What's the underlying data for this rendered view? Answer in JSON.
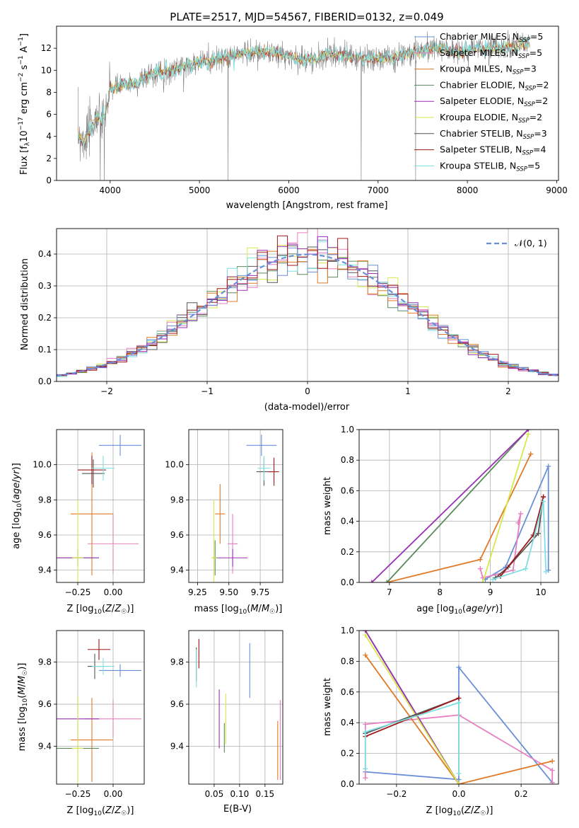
{
  "figure": {
    "title": "PLATE=2517, MJD=54567, FIBERID=0132, z=0.049"
  },
  "models": [
    {
      "key": "chab_miles",
      "name": "Chabrier MILES",
      "nssp": "5",
      "color": "#6a8fd8"
    },
    {
      "key": "salp_miles",
      "name": "Salpeter MILES",
      "nssp": "5",
      "color": "#e77fc0"
    },
    {
      "key": "krou_miles",
      "name": "Kroupa MILES",
      "nssp": "3",
      "color": "#e07a28"
    },
    {
      "key": "chab_elodie",
      "name": "Chabrier ELODIE",
      "nssp": "2",
      "color": "#5b8a5b"
    },
    {
      "key": "salp_elodie",
      "name": "Salpeter ELODIE",
      "nssp": "2",
      "color": "#9b2fb5"
    },
    {
      "key": "krou_elodie",
      "name": "Kroupa ELODIE",
      "nssp": "2",
      "color": "#d7e84a"
    },
    {
      "key": "chab_stelib",
      "name": "Chabrier STELIB",
      "nssp": "3",
      "color": "#555555"
    },
    {
      "key": "salp_stelib",
      "name": "Salpeter STELIB",
      "nssp": "4",
      "color": "#a01818"
    },
    {
      "key": "krou_stelib",
      "name": "Kroupa STELIB",
      "nssp": "5",
      "color": "#7fdfe0"
    }
  ],
  "chart_data": [
    {
      "id": "spectrum",
      "type": "line",
      "xlabel": "wavelength [Angstrom, rest frame]",
      "ylabel": "Flux [f_λ 10^-17 erg cm^-2 s^-1 A^-1]",
      "xlim": [
        3400,
        9020
      ],
      "ylim": [
        0,
        14
      ],
      "xticks": [
        "4000",
        "5000",
        "6000",
        "7000",
        "8000",
        "9000"
      ],
      "yticks": [
        "0",
        "2",
        "4",
        "6",
        "8",
        "10",
        "12"
      ],
      "legend": "top-right",
      "data_color": "#808080",
      "model_color": "#7fdfe0",
      "continuum": {
        "x": [
          3640,
          3700,
          3800,
          3850,
          3900,
          3950,
          4000,
          4100,
          4200,
          4300,
          4400,
          4500,
          4700,
          4900,
          5100,
          5300,
          5500,
          5700,
          5900,
          6100,
          6300,
          6500,
          6700,
          6900,
          7100,
          7300,
          7500,
          7700,
          7900,
          8100,
          8300,
          8500,
          8700
        ],
        "y": [
          4.2,
          3.6,
          4.8,
          6.0,
          5.2,
          6.3,
          8.3,
          8.5,
          8.8,
          8.8,
          9.5,
          9.8,
          10.0,
          10.6,
          10.8,
          11.2,
          11.6,
          11.7,
          11.5,
          11.0,
          11.0,
          11.6,
          11.2,
          11.0,
          11.1,
          11.4,
          11.9,
          12.0,
          11.6,
          11.9,
          12.0,
          12.2,
          12.4
        ]
      },
      "absorption": [
        {
          "x": 3890,
          "y": 0
        },
        {
          "x": 3935,
          "y": 0
        },
        {
          "x": 5320,
          "y": 0
        },
        {
          "x": 6810,
          "y": 0
        },
        {
          "x": 7420,
          "y": 0
        }
      ]
    },
    {
      "id": "residuals",
      "type": "line",
      "xlabel": "(data-model)/error",
      "ylabel": "Normed distribution",
      "xlim": [
        -2.5,
        2.5
      ],
      "ylim": [
        0,
        0.48
      ],
      "xticks": [
        "−2",
        "−1",
        "0",
        "1",
        "2"
      ],
      "yticks": [
        "0.0",
        "0.1",
        "0.2",
        "0.3",
        "0.4"
      ],
      "legend": "top-right",
      "legend_label": "𝒩(0, 1)",
      "normal_color": "#6a8fd8",
      "hist_bin_width": 0.1
    },
    {
      "id": "age_vs_Z",
      "type": "scatter",
      "xlabel": "Z [log10(Z/Z☉)]",
      "ylabel": "age  [log10(age/yr)]",
      "xlim": [
        -0.4,
        0.22
      ],
      "ylim": [
        9.33,
        10.2
      ],
      "xticks": [
        "−0.25",
        "0.00"
      ],
      "yticks": [
        "9.4",
        "9.6",
        "9.8",
        "10.0"
      ],
      "points": [
        {
          "m": 0,
          "x": 0.05,
          "y": 10.11,
          "ex": 0.15,
          "ey": 0.06
        },
        {
          "m": 1,
          "x": 0.0,
          "y": 9.55,
          "ex": 0.18,
          "ey": 0.17
        },
        {
          "m": 2,
          "x": -0.15,
          "y": 9.72,
          "ex": 0.15,
          "ey": 0.35
        },
        {
          "m": 3,
          "x": -0.25,
          "y": 9.47,
          "ex": 0.15,
          "ey": 0.05
        },
        {
          "m": 4,
          "x": -0.25,
          "y": 9.47,
          "ex": 0.15,
          "ey": 0.05
        },
        {
          "m": 5,
          "x": -0.25,
          "y": 9.47,
          "ex": 0.04,
          "ey": 0.33
        },
        {
          "m": 6,
          "x": -0.14,
          "y": 9.95,
          "ex": 0.08,
          "ey": 0.08
        },
        {
          "m": 7,
          "x": -0.15,
          "y": 9.97,
          "ex": 0.1,
          "ey": 0.08
        },
        {
          "m": 8,
          "x": -0.07,
          "y": 9.98,
          "ex": 0.08,
          "ey": 0.07
        }
      ]
    },
    {
      "id": "age_vs_mass",
      "type": "scatter",
      "xlabel": "mass [log10(M/M☉)]",
      "ylabel": "",
      "xlim": [
        9.18,
        9.93
      ],
      "ylim": [
        9.33,
        10.2
      ],
      "xticks": [
        "9.25",
        "9.50",
        "9.75"
      ],
      "yticks": [
        "9.4",
        "9.6",
        "9.8",
        "10.0"
      ],
      "points": [
        {
          "m": 0,
          "x": 9.76,
          "y": 10.11,
          "ex": 0.12,
          "ey": 0.06
        },
        {
          "m": 1,
          "x": 9.53,
          "y": 9.55,
          "ex": 0.04,
          "ey": 0.17
        },
        {
          "m": 2,
          "x": 9.43,
          "y": 9.72,
          "ex": 0.04,
          "ey": 0.17
        },
        {
          "m": 3,
          "x": 9.39,
          "y": 9.47,
          "ex": 0.02,
          "ey": 0.1
        },
        {
          "m": 4,
          "x": 9.53,
          "y": 9.47,
          "ex": 0.12,
          "ey": 0.05
        },
        {
          "m": 5,
          "x": 9.38,
          "y": 9.47,
          "ex": 0.02,
          "ey": 0.33
        },
        {
          "m": 6,
          "x": 9.78,
          "y": 9.96,
          "ex": 0.06,
          "ey": 0.08
        },
        {
          "m": 7,
          "x": 9.86,
          "y": 9.96,
          "ex": 0.04,
          "ey": 0.08
        },
        {
          "m": 8,
          "x": 9.78,
          "y": 9.98,
          "ex": 0.05,
          "ey": 0.07
        }
      ]
    },
    {
      "id": "weight_vs_age",
      "type": "line",
      "xlabel": "age  [log10(age/yr)]",
      "ylabel": "mass weight",
      "xlim": [
        6.4,
        10.35
      ],
      "ylim": [
        0,
        1
      ],
      "xticks": [
        "7",
        "8",
        "9",
        "10"
      ],
      "yticks": [
        "0.0",
        "0.2",
        "0.4",
        "0.6",
        "0.8",
        "1.0"
      ],
      "series": [
        {
          "m": 0,
          "x": [
            8.9,
            9.3,
            10.15,
            10.15
          ],
          "y": [
            0.02,
            0.1,
            0.76,
            0.08
          ]
        },
        {
          "m": 1,
          "x": [
            8.8,
            8.85,
            9.45,
            9.6,
            9.55
          ],
          "y": [
            0.09,
            0.03,
            0.08,
            0.45,
            0.39
          ]
        },
        {
          "m": 2,
          "x": [
            6.95,
            8.8,
            9.8
          ],
          "y": [
            0.0,
            0.15,
            0.84
          ]
        },
        {
          "m": 3,
          "x": [
            6.95,
            9.75
          ],
          "y": [
            0.0,
            1.0
          ]
        },
        {
          "m": 4,
          "x": [
            6.65,
            9.75
          ],
          "y": [
            0.0,
            1.0
          ]
        },
        {
          "m": 5,
          "x": [
            8.85,
            9.75
          ],
          "y": [
            0.0,
            0.97
          ]
        },
        {
          "m": 6,
          "x": [
            9.1,
            9.35,
            9.95,
            10.05
          ],
          "y": [
            0.03,
            0.1,
            0.32,
            0.56
          ]
        },
        {
          "m": 7,
          "x": [
            9.2,
            9.85,
            10.05
          ],
          "y": [
            0.04,
            0.31,
            0.56
          ]
        },
        {
          "m": 8,
          "x": [
            9.05,
            9.7,
            10.05,
            10.1
          ],
          "y": [
            0.02,
            0.09,
            0.53,
            0.07
          ]
        }
      ]
    },
    {
      "id": "mass_vs_Z",
      "type": "scatter",
      "xlabel": "Z [log10(Z/Z☉)]",
      "ylabel": "mass [log10(M/M☉)]",
      "xlim": [
        -0.4,
        0.22
      ],
      "ylim": [
        9.22,
        9.95
      ],
      "xticks": [
        "−0.25",
        "0.00"
      ],
      "yticks": [
        "9.4",
        "9.6",
        "9.8"
      ],
      "points": [
        {
          "m": 0,
          "x": 0.05,
          "y": 9.76,
          "ex": 0.15,
          "ey": 0.03
        },
        {
          "m": 1,
          "x": 0.0,
          "y": 9.53,
          "ex": 0.2,
          "ey": 0.09
        },
        {
          "m": 2,
          "x": -0.15,
          "y": 9.43,
          "ex": 0.15,
          "ey": 0.2
        },
        {
          "m": 3,
          "x": -0.25,
          "y": 9.39,
          "ex": 0.15,
          "ey": 0.02
        },
        {
          "m": 4,
          "x": -0.25,
          "y": 9.53,
          "ex": 0.15,
          "ey": 0.11
        },
        {
          "m": 5,
          "x": -0.25,
          "y": 9.39,
          "ex": 0.04,
          "ey": 0.25
        },
        {
          "m": 6,
          "x": -0.13,
          "y": 9.78,
          "ex": 0.05,
          "ey": 0.06
        },
        {
          "m": 7,
          "x": -0.1,
          "y": 9.86,
          "ex": 0.08,
          "ey": 0.05
        },
        {
          "m": 8,
          "x": -0.07,
          "y": 9.78,
          "ex": 0.08,
          "ey": 0.04
        }
      ]
    },
    {
      "id": "mass_vs_ebv",
      "type": "scatter",
      "xlabel": "E(B-V)",
      "ylabel": "",
      "xlim": [
        0,
        0.185
      ],
      "ylim": [
        9.22,
        9.95
      ],
      "xticks": [
        "0.05",
        "0.10",
        "0.15"
      ],
      "yticks": [
        "9.4",
        "9.6",
        "9.8"
      ],
      "points": [
        {
          "m": 0,
          "x": 0.12,
          "y": 9.76,
          "ey": 0.13
        },
        {
          "m": 1,
          "x": 0.18,
          "y": 9.43,
          "ey": 0.19
        },
        {
          "m": 2,
          "x": 0.175,
          "y": 9.38,
          "ey": 0.14
        },
        {
          "m": 3,
          "x": 0.07,
          "y": 9.44,
          "ey": 0.07
        },
        {
          "m": 4,
          "x": 0.06,
          "y": 9.53,
          "ey": 0.14
        },
        {
          "m": 5,
          "x": 0.073,
          "y": 9.53,
          "ey": 0.12
        },
        {
          "m": 6,
          "x": 0.015,
          "y": 9.79,
          "ey": 0.08
        },
        {
          "m": 7,
          "x": 0.02,
          "y": 9.84,
          "ey": 0.07
        },
        {
          "m": 8,
          "x": 0.015,
          "y": 9.77,
          "ey": 0.09
        }
      ]
    },
    {
      "id": "weight_vs_Z",
      "type": "line",
      "xlabel": "Z [log10(Z/Z☉)]",
      "ylabel": "mass weight",
      "xlim": [
        -0.32,
        0.32
      ],
      "ylim": [
        0,
        1
      ],
      "xticks": [
        "−0.2",
        "0.0",
        "0.2"
      ],
      "yticks": [
        "0.0",
        "0.2",
        "0.4",
        "0.6",
        "0.8",
        "1.0"
      ],
      "series": [
        {
          "m": 0,
          "x": [
            -0.3,
            0.0,
            0.0,
            0.3
          ],
          "y": [
            0.08,
            0.03,
            0.76,
            0.01
          ]
        },
        {
          "m": 1,
          "x": [
            -0.3,
            -0.3,
            0.0,
            0.3,
            0.3
          ],
          "y": [
            0.04,
            0.39,
            0.45,
            0.09,
            0.01
          ]
        },
        {
          "m": 2,
          "x": [
            -0.3,
            0.0,
            0.3
          ],
          "y": [
            0.84,
            0.0,
            0.15
          ]
        },
        {
          "m": 3,
          "x": [
            -0.3,
            0.0
          ],
          "y": [
            1.0,
            0.0
          ]
        },
        {
          "m": 4,
          "x": [
            -0.3,
            0.0
          ],
          "y": [
            1.0,
            0.0
          ]
        },
        {
          "m": 5,
          "x": [
            -0.3,
            0.0
          ],
          "y": [
            0.97,
            0.0
          ]
        },
        {
          "m": 6,
          "x": [
            -0.3,
            0.0
          ],
          "y": [
            0.33,
            0.56
          ]
        },
        {
          "m": 7,
          "x": [
            -0.3,
            0.0
          ],
          "y": [
            0.31,
            0.56
          ]
        },
        {
          "m": 8,
          "x": [
            -0.3,
            -0.3,
            0.0,
            0.0
          ],
          "y": [
            0.1,
            0.34,
            0.53,
            0.07
          ]
        }
      ]
    }
  ]
}
